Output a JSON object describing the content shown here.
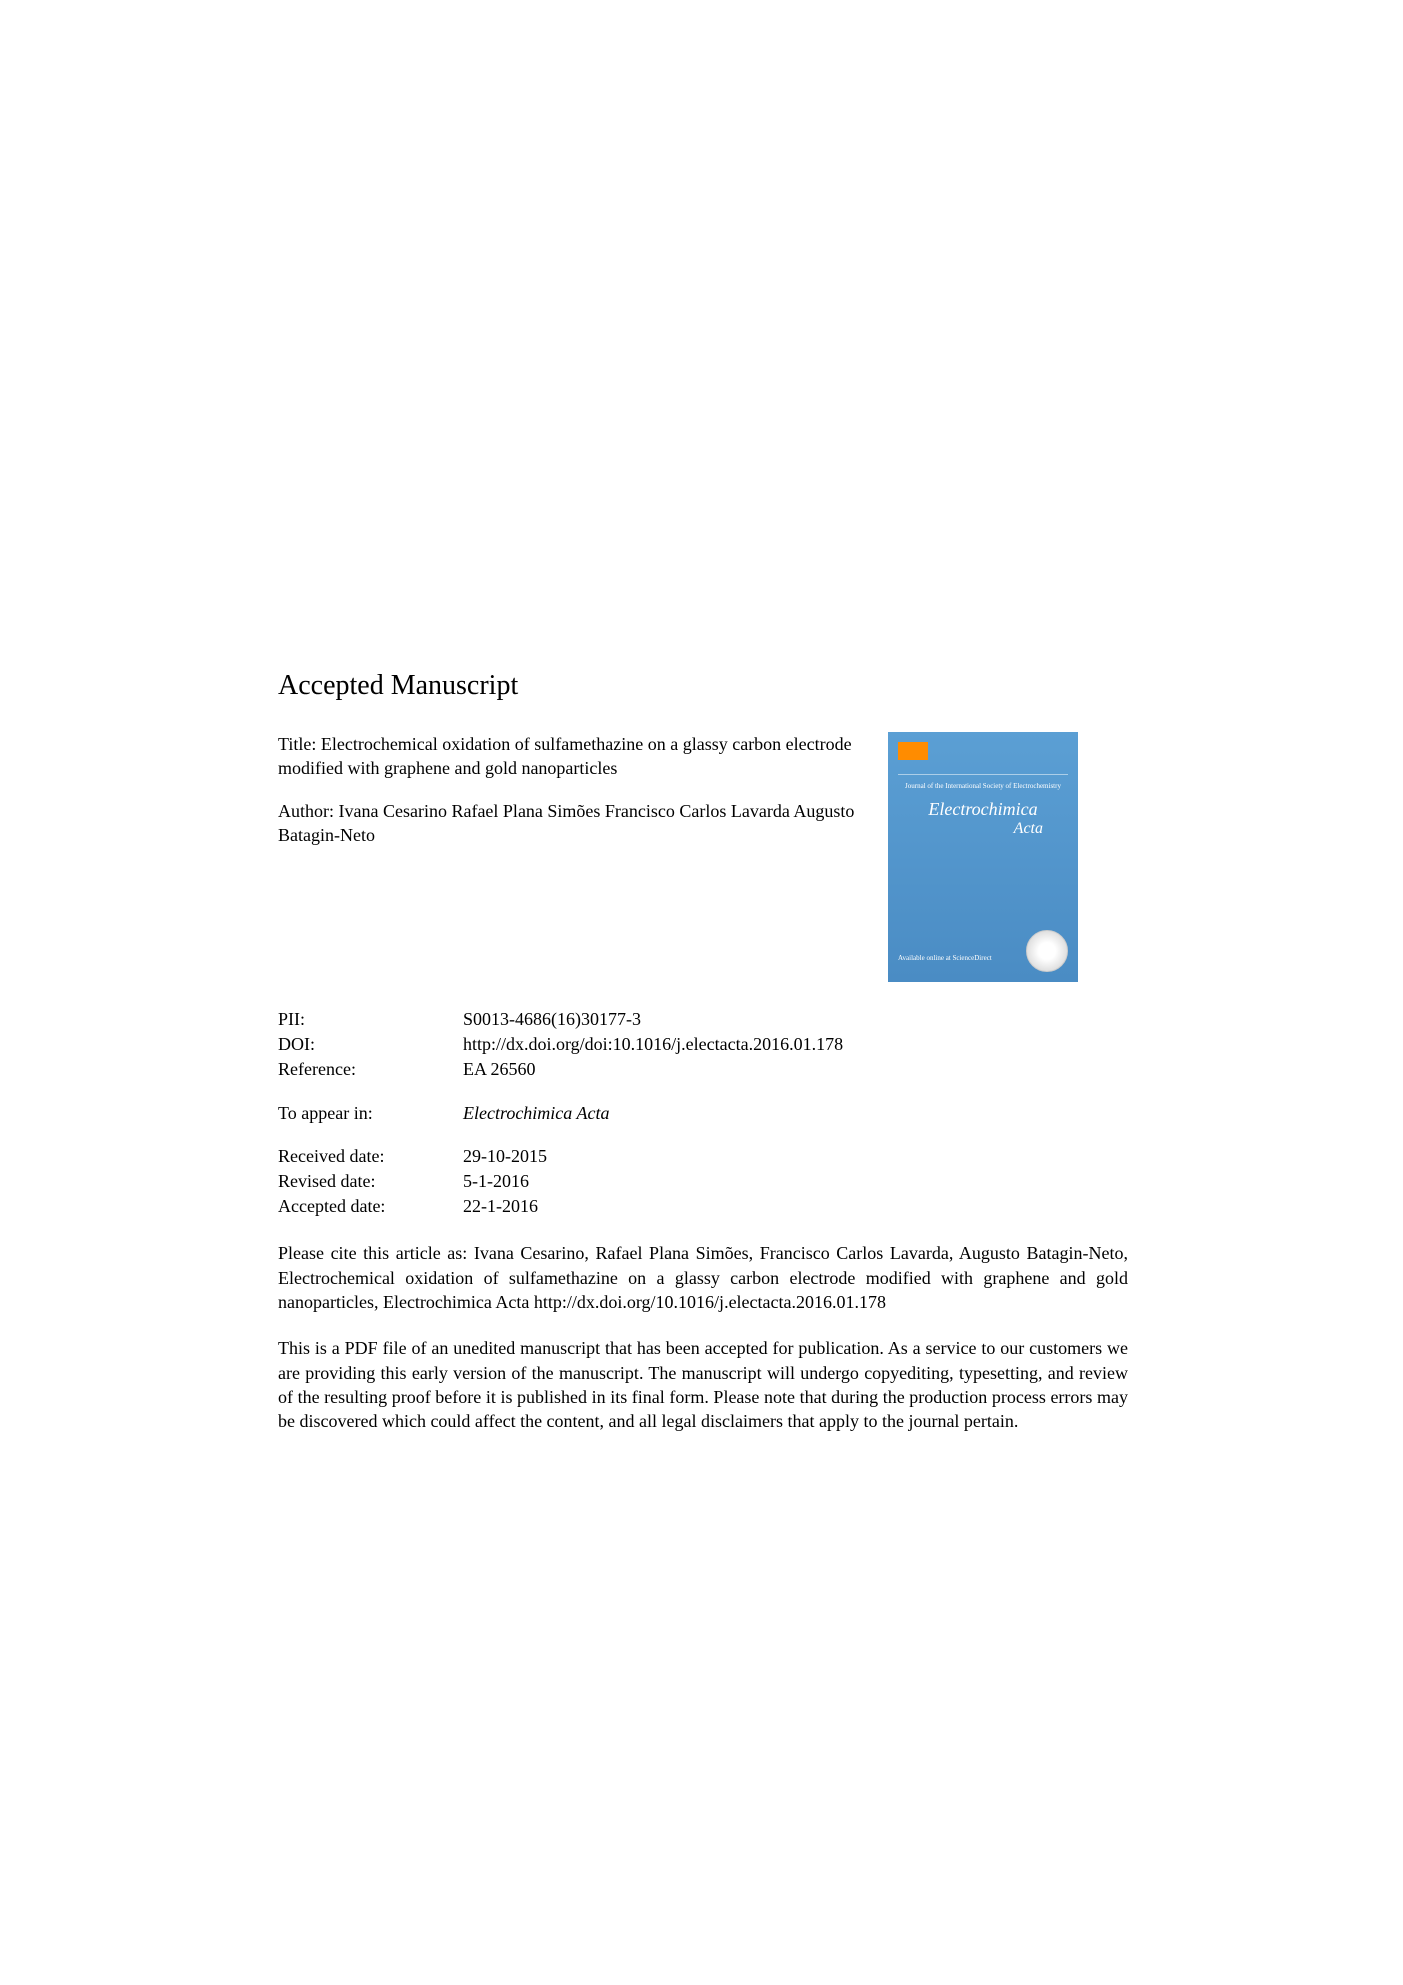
{
  "heading": "Accepted Manuscript",
  "title_prefix": "Title: ",
  "title": "Electrochemical oxidation of sulfamethazine on a glassy carbon electrode modified with graphene and gold nanoparticles",
  "author_prefix": "Author: ",
  "authors": "Ivana Cesarino Rafael Plana Simões Francisco Carlos Lavarda Augusto Batagin-Neto",
  "metadata": {
    "pii": {
      "label": "PII:",
      "value": "S0013-4686(16)30177-3"
    },
    "doi": {
      "label": "DOI:",
      "value": "http://dx.doi.org/doi:10.1016/j.electacta.2016.01.178"
    },
    "reference": {
      "label": "Reference:",
      "value": "EA 26560"
    },
    "appear_in": {
      "label": "To appear in:",
      "value": "Electrochimica Acta"
    },
    "received": {
      "label": "Received date:",
      "value": "29-10-2015"
    },
    "revised": {
      "label": "Revised date:",
      "value": "5-1-2016"
    },
    "accepted": {
      "label": "Accepted date:",
      "value": "22-1-2016"
    }
  },
  "citation": "Please cite this article as: Ivana Cesarino, Rafael Plana Simões, Francisco Carlos Lavarda, Augusto Batagin-Neto, Electrochemical oxidation of sulfamethazine on a glassy carbon electrode modified with graphene and gold nanoparticles, Electrochimica Acta http://dx.doi.org/10.1016/j.electacta.2016.01.178",
  "disclaimer": "This is a PDF file of an unedited manuscript that has been accepted for publication. As a service to our customers we are providing this early version of the manuscript. The manuscript will undergo copyediting, typesetting, and review of the resulting proof before it is published in its final form. Please note that during the production process errors may be discovered which could affect the content, and all legal disclaimers that apply to the journal pertain.",
  "cover": {
    "journal_name_1": "Electrochimica",
    "journal_name_2": "Acta",
    "subtitle": "Journal of the International Society of Electrochemistry",
    "bottom_text": "Available online at\nScienceDirect",
    "colors": {
      "background_top": "#5b9fd4",
      "background_bottom": "#4a8cc4",
      "logo": "#ff8c00",
      "text": "#ffffff"
    }
  },
  "colors": {
    "page_background": "#ffffff",
    "text": "#000000"
  },
  "typography": {
    "heading_fontsize": 28,
    "body_fontsize": 18,
    "font_family": "Georgia, Times New Roman, serif"
  }
}
